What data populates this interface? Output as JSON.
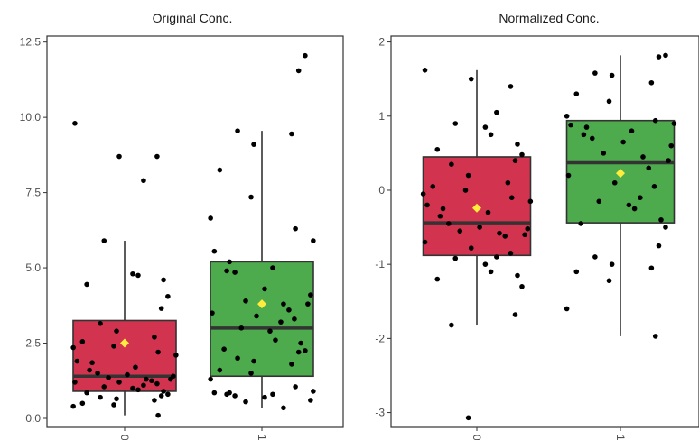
{
  "chart_data": [
    {
      "type": "box",
      "title": "Original Conc.",
      "categories": [
        "0",
        "1"
      ],
      "ylim": [
        -0.3,
        12.7
      ],
      "yticks": [
        "0.0",
        "2.5",
        "5.0",
        "7.5",
        "10.0",
        "12.5"
      ],
      "ytick_values": [
        0,
        2.5,
        5,
        7.5,
        10,
        12.5
      ],
      "grid": false,
      "colors": [
        "#d2344f",
        "#4dab4d"
      ],
      "mean_color": "#ffec3d",
      "boxes": [
        {
          "category": "0",
          "whisker_low": 0.1,
          "q1": 0.9,
          "median": 1.4,
          "q3": 3.25,
          "whisker_high": 5.9,
          "mean": 2.5
        },
        {
          "category": "1",
          "whisker_low": 0.35,
          "q1": 1.4,
          "median": 3.0,
          "q3": 5.2,
          "whisker_high": 9.55,
          "mean": 3.8
        }
      ],
      "points": [
        {
          "category": "0",
          "values": [
            9.8,
            8.7,
            8.7,
            7.9,
            5.9,
            4.8,
            4.75,
            4.6,
            4.45,
            4.05,
            3.65,
            3.15,
            2.9,
            2.7,
            2.55,
            2.4,
            2.35,
            2.2,
            2.1,
            1.9,
            1.85,
            1.7,
            1.6,
            1.5,
            1.45,
            1.4,
            1.35,
            1.3,
            1.3,
            1.25,
            1.2,
            1.2,
            1.15,
            1.1,
            1.05,
            1.0,
            0.95,
            0.9,
            0.85,
            0.8,
            0.75,
            0.7,
            0.65,
            0.6,
            0.5,
            0.45,
            0.4,
            0.1
          ]
        },
        {
          "category": "1",
          "values": [
            12.05,
            11.55,
            9.55,
            9.1,
            9.45,
            8.25,
            7.35,
            6.65,
            6.3,
            5.9,
            5.55,
            5.2,
            5.0,
            4.9,
            4.85,
            4.3,
            4.1,
            3.9,
            3.8,
            3.8,
            3.6,
            3.5,
            3.4,
            3.3,
            3.2,
            3.0,
            2.9,
            2.6,
            2.5,
            2.3,
            2.25,
            2.2,
            2.0,
            1.9,
            1.8,
            1.6,
            1.5,
            1.3,
            1.05,
            0.9,
            0.85,
            0.85,
            0.8,
            0.8,
            0.75,
            0.7,
            0.6,
            0.55,
            0.35
          ]
        }
      ]
    },
    {
      "type": "box",
      "title": "Normalized Conc.",
      "categories": [
        "0",
        "1"
      ],
      "ylim": [
        -3.2,
        2.08
      ],
      "yticks": [
        "-3",
        "-2",
        "-1",
        "0",
        "1",
        "2"
      ],
      "ytick_values": [
        -3,
        -2,
        -1,
        0,
        1,
        2
      ],
      "grid": false,
      "colors": [
        "#d2344f",
        "#4dab4d"
      ],
      "mean_color": "#ffec3d",
      "boxes": [
        {
          "category": "0",
          "whisker_low": -1.82,
          "q1": -0.88,
          "median": -0.44,
          "q3": 0.45,
          "whisker_high": 1.62,
          "mean": -0.24
        },
        {
          "category": "1",
          "whisker_low": -1.97,
          "q1": -0.44,
          "median": 0.37,
          "q3": 0.94,
          "whisker_high": 1.82,
          "mean": 0.23
        }
      ],
      "points": [
        {
          "category": "0",
          "values": [
            1.62,
            1.5,
            1.4,
            1.05,
            0.9,
            0.85,
            0.75,
            0.62,
            0.55,
            0.48,
            0.4,
            0.35,
            0.2,
            0.1,
            0.05,
            0.0,
            -0.05,
            -0.1,
            -0.15,
            -0.2,
            -0.25,
            -0.3,
            -0.35,
            -0.45,
            -0.5,
            -0.52,
            -0.55,
            -0.58,
            -0.6,
            -0.62,
            -0.7,
            -0.78,
            -0.85,
            -0.9,
            -0.92,
            -1.0,
            -1.1,
            -1.15,
            -1.2,
            -1.3,
            -1.68,
            -1.82,
            -3.07
          ]
        },
        {
          "category": "1",
          "values": [
            1.82,
            1.8,
            1.58,
            1.55,
            1.45,
            1.3,
            1.2,
            1.0,
            0.94,
            0.9,
            0.88,
            0.85,
            0.8,
            0.75,
            0.7,
            0.65,
            0.6,
            0.5,
            0.45,
            0.4,
            0.3,
            0.2,
            0.1,
            0.05,
            -0.1,
            -0.15,
            -0.2,
            -0.25,
            -0.4,
            -0.45,
            -0.5,
            -0.75,
            -0.9,
            -1.0,
            -1.05,
            -1.1,
            -1.22,
            -1.6,
            -1.97
          ]
        }
      ]
    }
  ]
}
